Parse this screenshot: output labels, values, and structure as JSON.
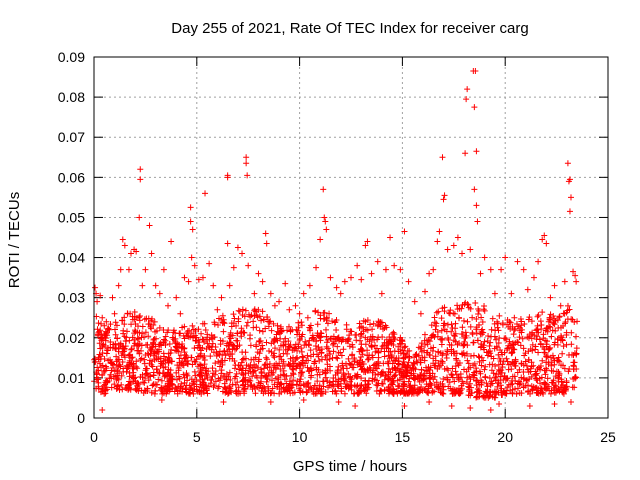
{
  "chart_data": {
    "type": "scatter",
    "title": "Day 255 of 2021, Rate Of TEC Index for receiver carg",
    "xlabel": "GPS time / hours",
    "ylabel": "ROTI / TECUs",
    "xlim": [
      0,
      25
    ],
    "ylim": [
      0,
      0.09
    ],
    "x_ticks": [
      0,
      5,
      10,
      15,
      20,
      25
    ],
    "x_tick_labels": [
      "0",
      "5",
      "10",
      "15",
      "20",
      "25"
    ],
    "y_ticks": [
      0,
      0.01,
      0.02,
      0.03,
      0.04,
      0.05,
      0.06,
      0.07,
      0.08,
      0.09
    ],
    "y_tick_labels": [
      "0",
      "0.01",
      "0.02",
      "0.03",
      "0.04",
      "0.05",
      "0.06",
      "0.07",
      "0.08",
      "0.09"
    ],
    "grid": true,
    "marker": "+",
    "marker_color": "#ff0000",
    "series": [
      {
        "name": "ROTI",
        "points": [
          [
            0.05,
            0.0325
          ],
          [
            0.1,
            0.031
          ],
          [
            0.15,
            0.029
          ],
          [
            0.2,
            0.0205
          ],
          [
            0.25,
            0.0215
          ],
          [
            0.3,
            0.0305
          ],
          [
            0.4,
            0.025
          ],
          [
            0.5,
            0.023
          ],
          [
            0.6,
            0.024
          ],
          [
            0.75,
            0.022
          ],
          [
            0.9,
            0.03
          ],
          [
            1.0,
            0.026
          ],
          [
            1.2,
            0.033
          ],
          [
            1.3,
            0.037
          ],
          [
            1.4,
            0.0445
          ],
          [
            1.5,
            0.043
          ],
          [
            1.7,
            0.037
          ],
          [
            1.8,
            0.041
          ],
          [
            1.95,
            0.042
          ],
          [
            2.05,
            0.0415
          ],
          [
            2.25,
            0.0595
          ],
          [
            2.25,
            0.062
          ],
          [
            2.2,
            0.05
          ],
          [
            2.35,
            0.033
          ],
          [
            2.5,
            0.037
          ],
          [
            2.7,
            0.048
          ],
          [
            2.8,
            0.041
          ],
          [
            3.0,
            0.033
          ],
          [
            3.2,
            0.031
          ],
          [
            3.4,
            0.037
          ],
          [
            3.6,
            0.028
          ],
          [
            3.75,
            0.044
          ],
          [
            4.0,
            0.03
          ],
          [
            4.2,
            0.026
          ],
          [
            4.4,
            0.035
          ],
          [
            4.6,
            0.034
          ],
          [
            4.7,
            0.0525
          ],
          [
            4.7,
            0.049
          ],
          [
            4.75,
            0.04
          ],
          [
            4.8,
            0.047
          ],
          [
            4.9,
            0.038
          ],
          [
            5.1,
            0.0345
          ],
          [
            5.3,
            0.035
          ],
          [
            5.4,
            0.056
          ],
          [
            5.6,
            0.0385
          ],
          [
            5.8,
            0.033
          ],
          [
            6.0,
            0.027
          ],
          [
            6.2,
            0.03
          ],
          [
            6.5,
            0.06
          ],
          [
            6.5,
            0.0605
          ],
          [
            6.5,
            0.0435
          ],
          [
            6.6,
            0.033
          ],
          [
            6.8,
            0.0375
          ],
          [
            7.0,
            0.0425
          ],
          [
            7.2,
            0.041
          ],
          [
            7.4,
            0.065
          ],
          [
            7.4,
            0.0635
          ],
          [
            7.45,
            0.0605
          ],
          [
            7.5,
            0.038
          ],
          [
            7.8,
            0.031
          ],
          [
            8.0,
            0.036
          ],
          [
            8.2,
            0.034
          ],
          [
            8.35,
            0.046
          ],
          [
            8.4,
            0.0435
          ],
          [
            8.6,
            0.031
          ],
          [
            8.8,
            0.028
          ],
          [
            9.0,
            0.029
          ],
          [
            9.3,
            0.0335
          ],
          [
            9.5,
            0.027
          ],
          [
            9.8,
            0.028
          ],
          [
            10.0,
            0.026
          ],
          [
            10.2,
            0.031
          ],
          [
            10.5,
            0.033
          ],
          [
            10.8,
            0.0375
          ],
          [
            11.0,
            0.0445
          ],
          [
            11.15,
            0.057
          ],
          [
            11.2,
            0.05
          ],
          [
            11.25,
            0.049
          ],
          [
            11.3,
            0.047
          ],
          [
            11.5,
            0.035
          ],
          [
            11.8,
            0.0325
          ],
          [
            12.0,
            0.031
          ],
          [
            12.2,
            0.034
          ],
          [
            12.5,
            0.035
          ],
          [
            12.8,
            0.038
          ],
          [
            13.0,
            0.0345
          ],
          [
            13.2,
            0.043
          ],
          [
            13.3,
            0.044
          ],
          [
            13.5,
            0.036
          ],
          [
            13.8,
            0.039
          ],
          [
            14.0,
            0.031
          ],
          [
            14.2,
            0.037
          ],
          [
            14.4,
            0.045
          ],
          [
            14.6,
            0.038
          ],
          [
            14.9,
            0.037
          ],
          [
            15.1,
            0.0465
          ],
          [
            15.3,
            0.034
          ],
          [
            15.6,
            0.029
          ],
          [
            15.9,
            0.026
          ],
          [
            16.1,
            0.0315
          ],
          [
            16.3,
            0.036
          ],
          [
            16.5,
            0.037
          ],
          [
            16.7,
            0.044
          ],
          [
            16.8,
            0.0465
          ],
          [
            16.95,
            0.065
          ],
          [
            17.0,
            0.0545
          ],
          [
            17.05,
            0.0555
          ],
          [
            17.2,
            0.042
          ],
          [
            17.5,
            0.043
          ],
          [
            17.7,
            0.045
          ],
          [
            17.9,
            0.041
          ],
          [
            18.05,
            0.066
          ],
          [
            18.1,
            0.0795
          ],
          [
            18.15,
            0.082
          ],
          [
            18.3,
            0.042
          ],
          [
            18.45,
            0.0865
          ],
          [
            18.5,
            0.0775
          ],
          [
            18.55,
            0.0865
          ],
          [
            18.6,
            0.0665
          ],
          [
            18.5,
            0.057
          ],
          [
            18.6,
            0.053
          ],
          [
            18.65,
            0.049
          ],
          [
            18.8,
            0.036
          ],
          [
            19.0,
            0.04
          ],
          [
            19.3,
            0.037
          ],
          [
            19.5,
            0.031
          ],
          [
            19.8,
            0.037
          ],
          [
            20.0,
            0.04
          ],
          [
            20.3,
            0.031
          ],
          [
            20.6,
            0.039
          ],
          [
            20.9,
            0.037
          ],
          [
            21.1,
            0.032
          ],
          [
            21.4,
            0.035
          ],
          [
            21.6,
            0.039
          ],
          [
            21.8,
            0.0445
          ],
          [
            21.9,
            0.0455
          ],
          [
            22.0,
            0.0435
          ],
          [
            22.2,
            0.03
          ],
          [
            22.4,
            0.033
          ],
          [
            22.7,
            0.028
          ],
          [
            22.9,
            0.034
          ],
          [
            23.05,
            0.0635
          ],
          [
            23.1,
            0.059
          ],
          [
            23.15,
            0.0595
          ],
          [
            23.2,
            0.055
          ],
          [
            23.15,
            0.0515
          ],
          [
            23.3,
            0.0365
          ],
          [
            23.4,
            0.0355
          ],
          [
            23.45,
            0.034
          ],
          [
            0.4,
            0.002
          ],
          [
            3.3,
            0.0045
          ],
          [
            6.3,
            0.004
          ],
          [
            8.6,
            0.004
          ],
          [
            10.2,
            0.0045
          ],
          [
            11.9,
            0.004
          ],
          [
            12.7,
            0.003
          ],
          [
            15.1,
            0.003
          ],
          [
            16.3,
            0.004
          ],
          [
            17.4,
            0.003
          ],
          [
            18.3,
            0.0025
          ],
          [
            19.3,
            0.002
          ],
          [
            19.7,
            0.0035
          ],
          [
            21.2,
            0.003
          ],
          [
            22.4,
            0.0035
          ],
          [
            23.2,
            0.004
          ]
        ],
        "band": [
          [
            0,
            0.007,
            0.026
          ],
          [
            0.5,
            0.006,
            0.023
          ],
          [
            1,
            0.007,
            0.024
          ],
          [
            1.5,
            0.007,
            0.026
          ],
          [
            2,
            0.007,
            0.027
          ],
          [
            2.5,
            0.006,
            0.026
          ],
          [
            3,
            0.006,
            0.024
          ],
          [
            3.5,
            0.006,
            0.022
          ],
          [
            4,
            0.006,
            0.022
          ],
          [
            4.5,
            0.006,
            0.023
          ],
          [
            5,
            0.006,
            0.023
          ],
          [
            5.5,
            0.006,
            0.024
          ],
          [
            6,
            0.006,
            0.025
          ],
          [
            6.5,
            0.006,
            0.026
          ],
          [
            7,
            0.006,
            0.027
          ],
          [
            7.5,
            0.006,
            0.028
          ],
          [
            8,
            0.006,
            0.027
          ],
          [
            8.5,
            0.006,
            0.026
          ],
          [
            9,
            0.006,
            0.024
          ],
          [
            9.5,
            0.006,
            0.023
          ],
          [
            10,
            0.006,
            0.024
          ],
          [
            10.5,
            0.006,
            0.026
          ],
          [
            11,
            0.006,
            0.028
          ],
          [
            11.5,
            0.006,
            0.026
          ],
          [
            12,
            0.006,
            0.024
          ],
          [
            12.5,
            0.006,
            0.023
          ],
          [
            13,
            0.006,
            0.024
          ],
          [
            13.5,
            0.006,
            0.025
          ],
          [
            14,
            0.006,
            0.024
          ],
          [
            14.5,
            0.006,
            0.022
          ],
          [
            15,
            0.006,
            0.02
          ],
          [
            15.5,
            0.006,
            0.016
          ],
          [
            16,
            0.006,
            0.02
          ],
          [
            16.5,
            0.006,
            0.026
          ],
          [
            17,
            0.006,
            0.028
          ],
          [
            17.5,
            0.006,
            0.028
          ],
          [
            18,
            0.006,
            0.029
          ],
          [
            18.5,
            0.005,
            0.029
          ],
          [
            19,
            0.005,
            0.028
          ],
          [
            19.5,
            0.005,
            0.026
          ],
          [
            20,
            0.006,
            0.025
          ],
          [
            20.5,
            0.006,
            0.025
          ],
          [
            21,
            0.006,
            0.025
          ],
          [
            21.5,
            0.006,
            0.026
          ],
          [
            22,
            0.006,
            0.027
          ],
          [
            22.5,
            0.006,
            0.025
          ],
          [
            23,
            0.006,
            0.028
          ],
          [
            23.5,
            0.007,
            0.03
          ]
        ]
      }
    ]
  }
}
